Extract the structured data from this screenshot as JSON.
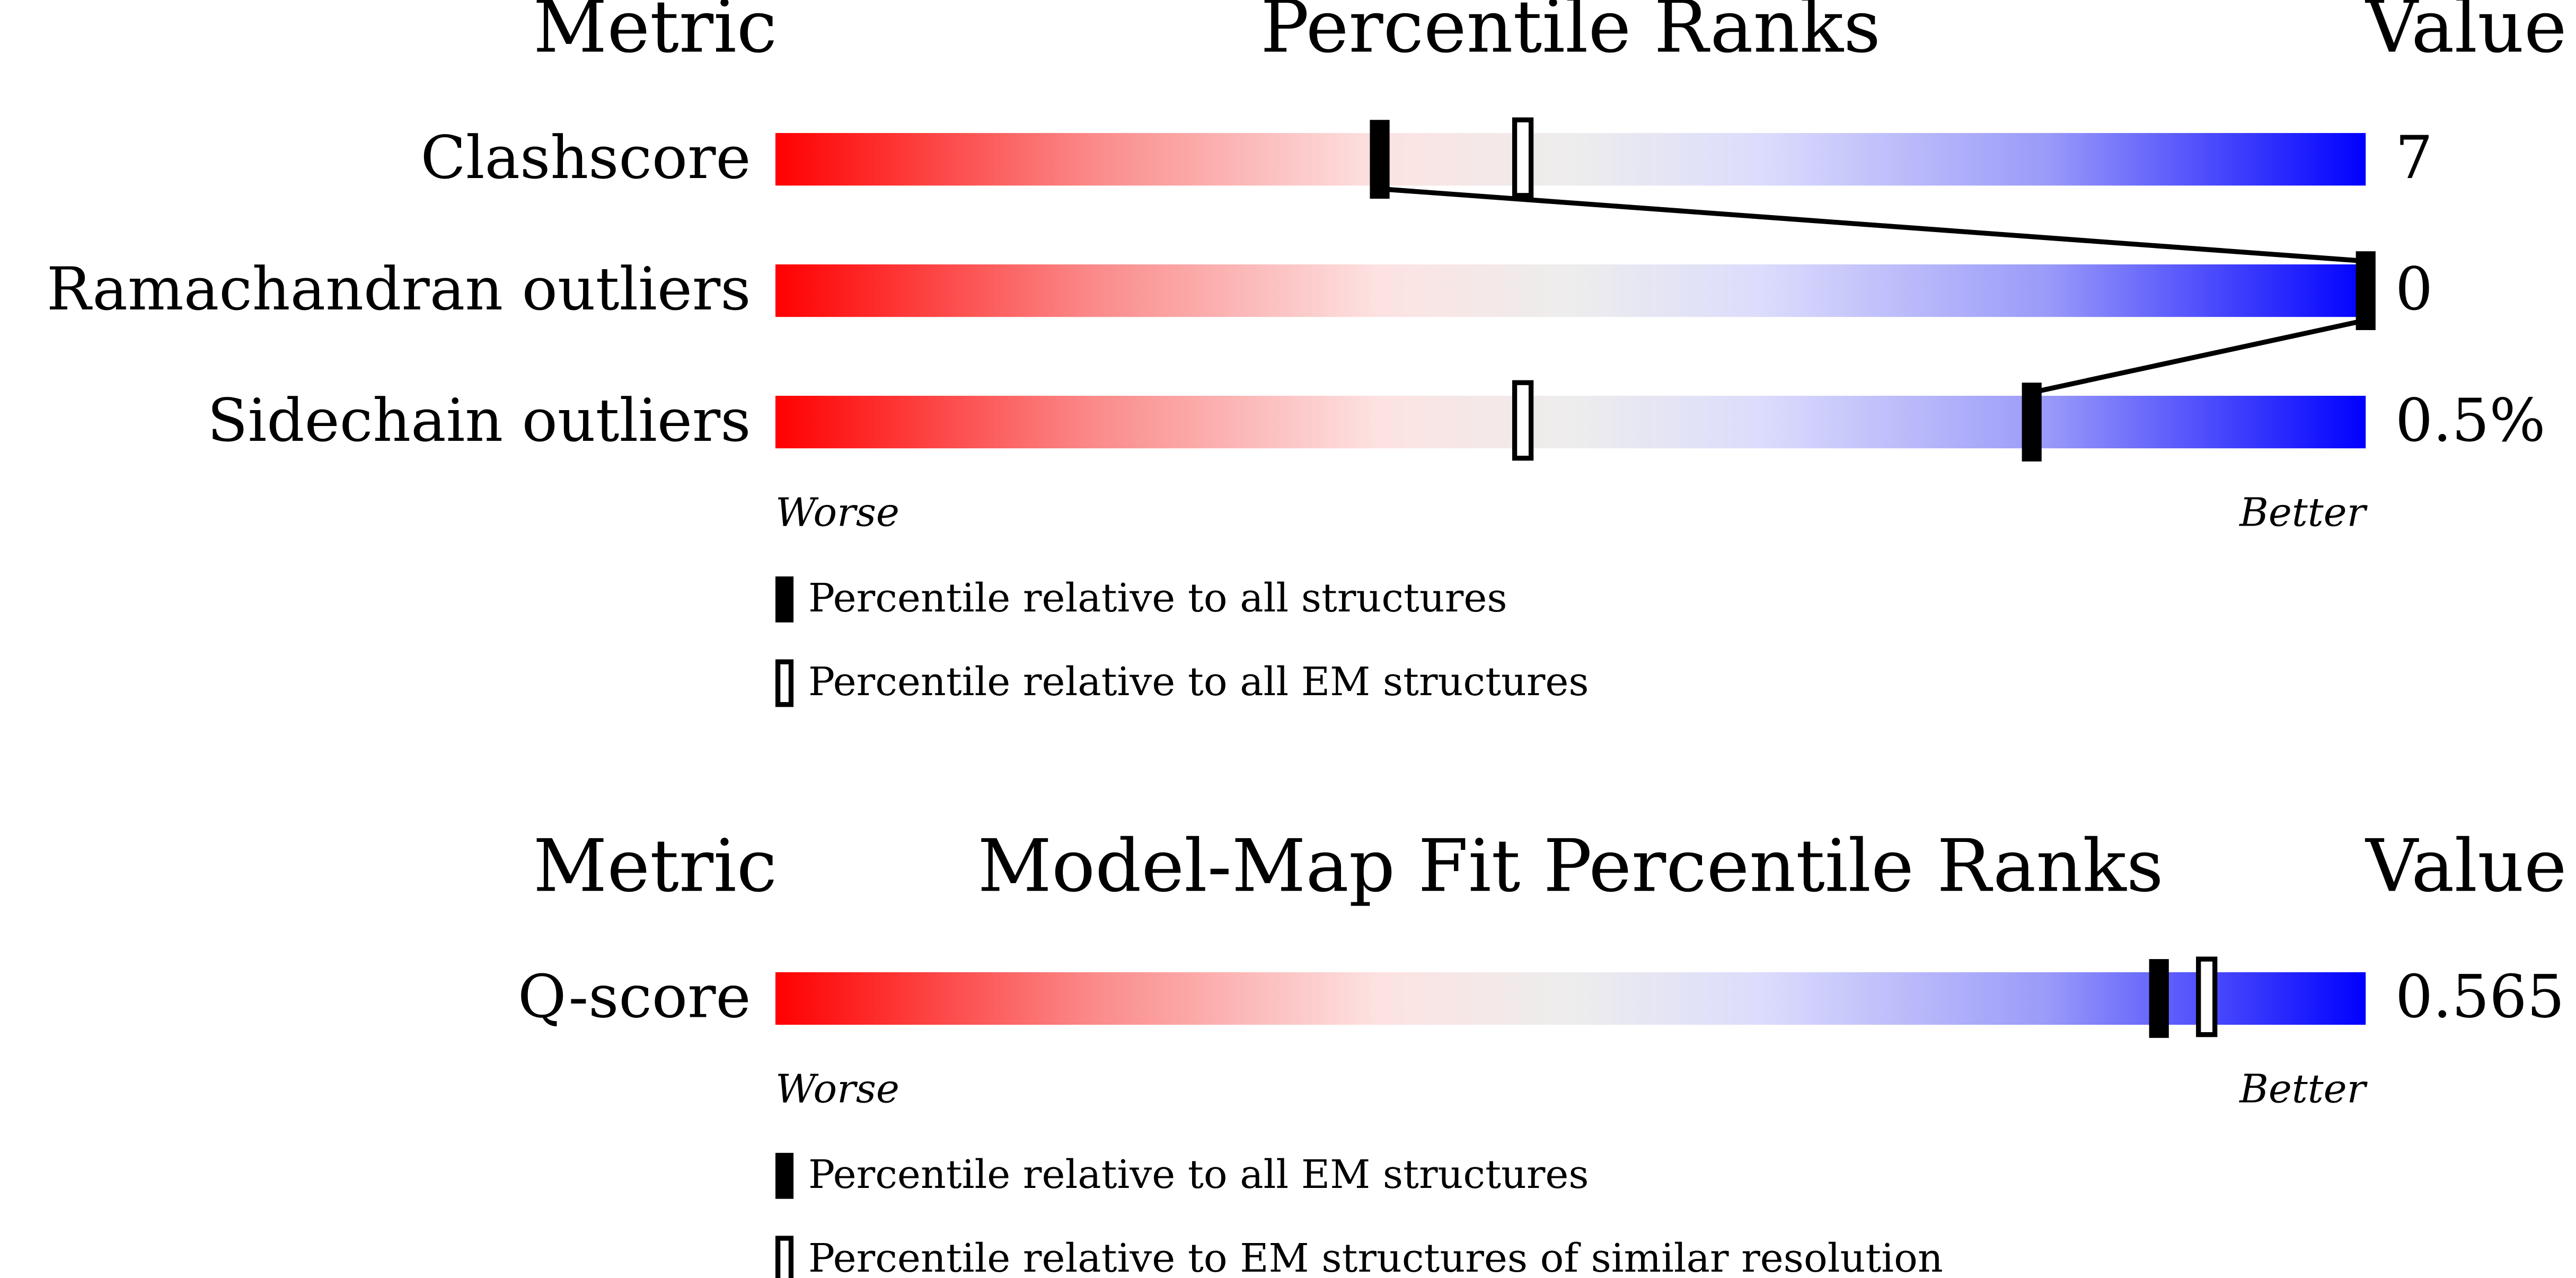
{
  "panels": [
    {
      "headers": {
        "metric": "Metric",
        "title": "Percentile Ranks",
        "value": "Value"
      },
      "xlim": [
        0,
        100
      ],
      "rows": [
        {
          "metric": "Clashscore",
          "value": "7",
          "filled": 38,
          "hollow": 47
        },
        {
          "metric": "Ramachandran outliers",
          "value": "0",
          "filled": 100
        },
        {
          "metric": "Sidechain outliers",
          "value": "0.5%",
          "filled": 79,
          "hollow": 47
        }
      ],
      "worse": "Worse",
      "better": "Better",
      "legend": {
        "filled": "Percentile relative to all structures",
        "hollow": "Percentile relative to all EM structures"
      }
    },
    {
      "headers": {
        "metric": "Metric",
        "title": "Model-Map Fit Percentile Ranks",
        "value": "Value"
      },
      "xlim": [
        0,
        100
      ],
      "rows": [
        {
          "metric": "Q-score",
          "value": "0.565",
          "filled": 87,
          "hollow": 90
        }
      ],
      "worse": "Worse",
      "better": "Better",
      "legend": {
        "filled": "Percentile relative to all EM structures",
        "hollow": "Percentile relative to EM structures of similar resolution"
      }
    }
  ]
}
